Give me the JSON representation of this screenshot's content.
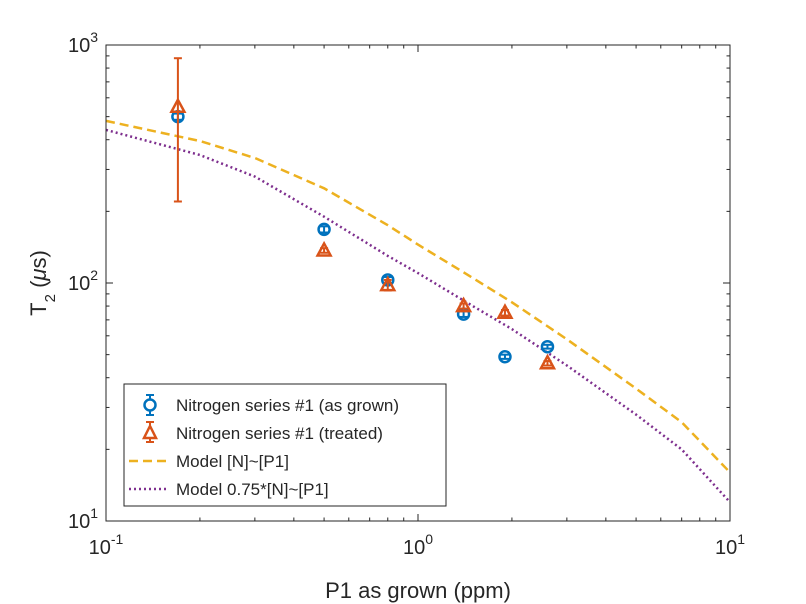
{
  "chart_data": {
    "type": "scatter",
    "x_scale": "log",
    "y_scale": "log",
    "xlim": [
      0.1,
      10
    ],
    "ylim": [
      10,
      1000
    ],
    "xlabel": "P1 as grown (ppm)",
    "ylabel": {
      "base": "T",
      "sub": "2",
      "rest": " (",
      "mu": "μ",
      "unit": "s)"
    },
    "x_ticks": [
      {
        "value": 0.1,
        "base": "10",
        "exp": "-1"
      },
      {
        "value": 1,
        "base": "10",
        "exp": "0"
      },
      {
        "value": 10,
        "base": "10",
        "exp": "1"
      }
    ],
    "y_ticks": [
      {
        "value": 10,
        "base": "10",
        "exp": "1"
      },
      {
        "value": 100,
        "base": "10",
        "exp": "2"
      },
      {
        "value": 1000,
        "base": "10",
        "exp": "3"
      }
    ],
    "legend_position": "bottom-left",
    "series": [
      {
        "name": "Nitrogen series #1 (as grown)",
        "marker": "circle",
        "color": "#0072BD",
        "points": [
          {
            "x": 0.17,
            "y": 500,
            "lo": 485,
            "hi": 515
          },
          {
            "x": 0.5,
            "y": 168,
            "lo": 163,
            "hi": 173
          },
          {
            "x": 0.8,
            "y": 103,
            "lo": 100,
            "hi": 106
          },
          {
            "x": 1.4,
            "y": 74,
            "lo": 72,
            "hi": 76
          },
          {
            "x": 1.9,
            "y": 49,
            "lo": 48,
            "hi": 50
          },
          {
            "x": 2.6,
            "y": 54,
            "lo": 53,
            "hi": 55
          }
        ]
      },
      {
        "name": "Nitrogen series #1 (treated)",
        "marker": "triangle",
        "color": "#D95319",
        "points": [
          {
            "x": 0.17,
            "y": 550,
            "lo": 220,
            "hi": 880
          },
          {
            "x": 0.5,
            "y": 137,
            "lo": 134,
            "hi": 140
          },
          {
            "x": 0.8,
            "y": 98,
            "lo": 93,
            "hi": 103
          },
          {
            "x": 1.4,
            "y": 80,
            "lo": 78,
            "hi": 82
          },
          {
            "x": 1.9,
            "y": 75,
            "lo": 73,
            "hi": 77
          },
          {
            "x": 2.6,
            "y": 46,
            "lo": 45,
            "hi": 47
          }
        ]
      },
      {
        "name": "Model [N]~[P1]",
        "style": "dashed",
        "color": "#EDB120",
        "x": [
          0.1,
          0.2,
          0.3,
          0.5,
          0.8,
          1.0,
          1.5,
          2.0,
          3.0,
          5.0,
          7.0,
          10.0
        ],
        "y": [
          480,
          395,
          335,
          250,
          175,
          145,
          105,
          83,
          58,
          36,
          26,
          16
        ]
      },
      {
        "name": "Model 0.75*[N]~[P1]",
        "style": "dotted",
        "color": "#7E2F8E",
        "x": [
          0.1,
          0.2,
          0.3,
          0.5,
          0.8,
          1.0,
          1.5,
          2.0,
          3.0,
          5.0,
          7.0,
          10.0
        ],
        "y": [
          440,
          345,
          280,
          190,
          130,
          110,
          80,
          64,
          45,
          28,
          20,
          12
        ]
      }
    ]
  }
}
